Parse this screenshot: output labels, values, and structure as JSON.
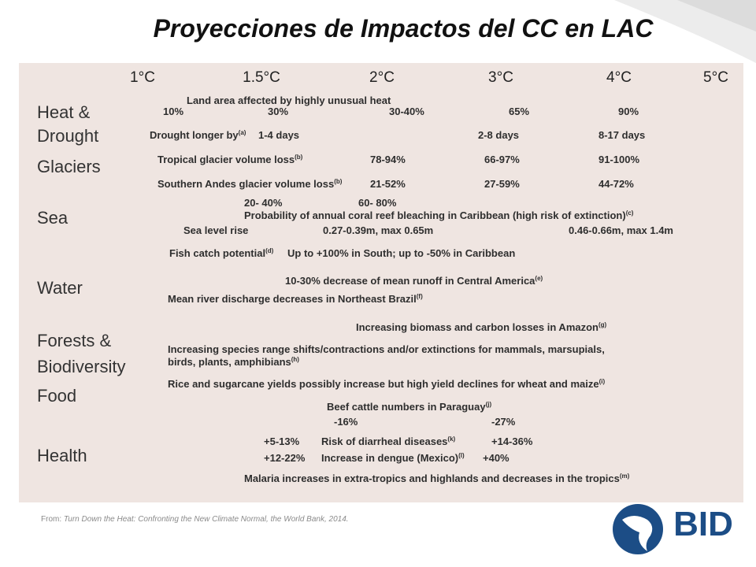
{
  "title": "Proyecciones de Impactos del CC en LAC",
  "temperatures": [
    "1°C",
    "1.5°C",
    "2°C",
    "3°C",
    "4°C",
    "5°C"
  ],
  "rows": [
    {
      "label": [
        "Heat &",
        "Drought"
      ],
      "items": [
        {
          "text": "Land area affected by highly unusual heat"
        },
        {
          "text": "10%"
        },
        {
          "text": "30%"
        },
        {
          "text": "30-40%"
        },
        {
          "text": "65%"
        },
        {
          "text": "90%"
        },
        {
          "text": "Drought longer by",
          "note": "(a)"
        },
        {
          "text": "1-4 days"
        },
        {
          "text": "2-8 days"
        },
        {
          "text": "8-17 days"
        }
      ]
    },
    {
      "label": [
        "Glaciers"
      ],
      "items": [
        {
          "text": "Tropical glacier volume loss",
          "note": "(b)"
        },
        {
          "text": "78-94%"
        },
        {
          "text": "66-97%"
        },
        {
          "text": "91-100%"
        },
        {
          "text": "Southern Andes glacier volume loss",
          "note": "(b)"
        },
        {
          "text": "21-52%"
        },
        {
          "text": "27-59%"
        },
        {
          "text": "44-72%"
        }
      ]
    },
    {
      "label": [
        "Sea"
      ],
      "items": [
        {
          "text": "20- 40%"
        },
        {
          "text": "60- 80%"
        },
        {
          "text": "Probability of annual coral reef bleaching in Caribbean (high risk of extinction)",
          "note": "(c)"
        },
        {
          "text": "Sea level rise"
        },
        {
          "text": "0.27-0.39m, max 0.65m"
        },
        {
          "text": "0.46-0.66m, max 1.4m"
        },
        {
          "text": "Fish catch potential",
          "note": "(d)"
        },
        {
          "text": "Up to +100% in South; up to -50% in Caribbean"
        }
      ]
    },
    {
      "label": [
        "Water"
      ],
      "items": [
        {
          "text": "10-30% decrease of mean runoff in Central America",
          "note": "(e)"
        },
        {
          "text": "Mean river discharge decreases in Northeast Brazil",
          "note": "(f)"
        }
      ]
    },
    {
      "label": [
        "Forests &",
        "Biodiversity"
      ],
      "items": [
        {
          "text": "Increasing biomass and carbon losses in Amazon",
          "note": "(g)"
        },
        {
          "text": "Increasing species range shifts/contractions and/or extinctions for mammals, marsupials,"
        },
        {
          "text": "birds, plants, amphibians",
          "note": "(h)"
        }
      ]
    },
    {
      "label": [
        "Food"
      ],
      "items": [
        {
          "text": "Rice and sugarcane yields possibly increase but high yield declines for wheat and maize",
          "note": "(i)"
        },
        {
          "text": "Beef cattle numbers in Paraguay",
          "note": "(j)"
        },
        {
          "text": "-16%"
        },
        {
          "text": "-27%"
        }
      ]
    },
    {
      "label": [
        "Health"
      ],
      "items": [
        {
          "text": "+5-13%"
        },
        {
          "text": "Risk of diarrheal diseases",
          "note": "(k)"
        },
        {
          "text": "+14-36%"
        },
        {
          "text": "+12-22%"
        },
        {
          "text": "Increase in dengue (Mexico)",
          "note": "(l)"
        },
        {
          "text": "+40%"
        },
        {
          "text": "Malaria increases in extra-tropics and highlands and decreases in the tropics",
          "note": "(m)"
        }
      ]
    }
  ],
  "source_prefix": "From:",
  "source": "Turn Down the Heat: Confronting the New Climate Normal, the World Bank, 2014.",
  "logo": "BID"
}
